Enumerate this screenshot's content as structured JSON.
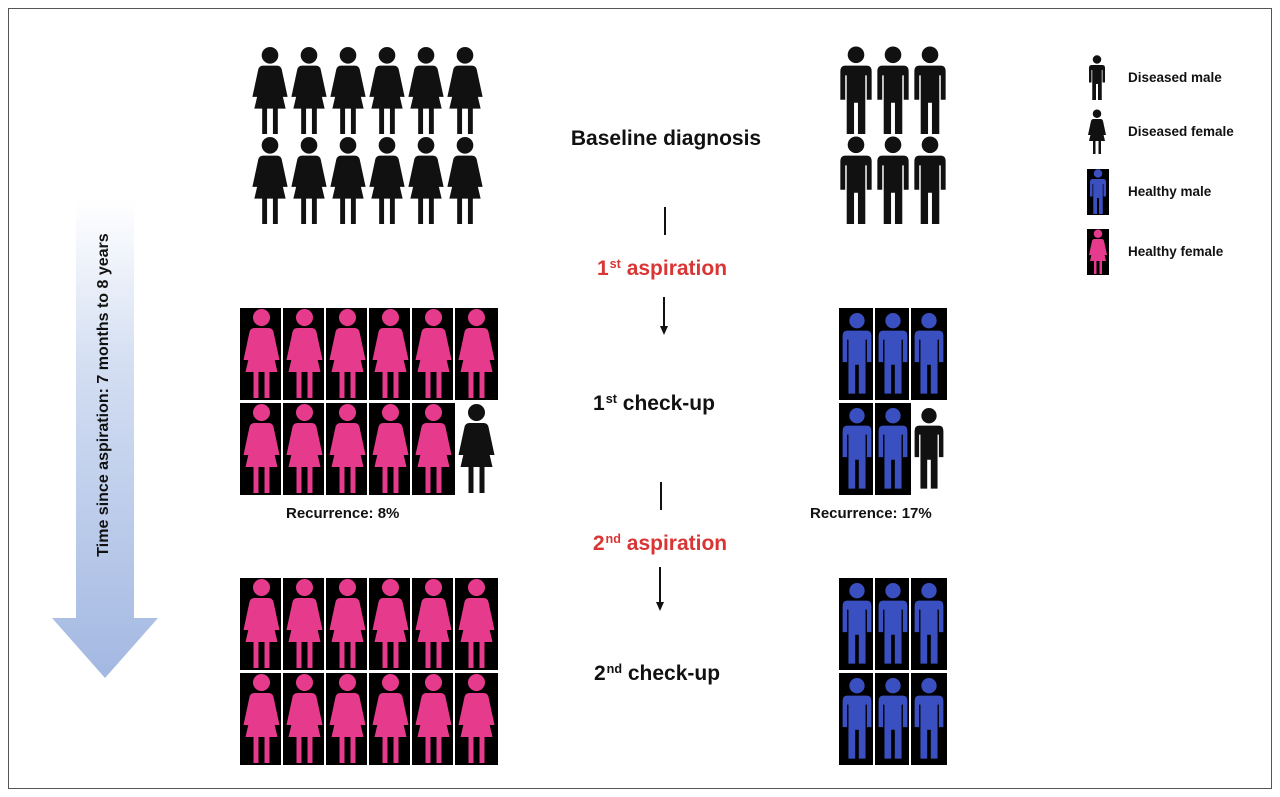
{
  "labels": {
    "baseline": "Baseline diagnosis",
    "aspiration1_num": "1",
    "aspiration1_sup": "st",
    "aspiration1_text": "aspiration",
    "checkup1_num": "1",
    "checkup1_sup": "st",
    "checkup1_text": "check-up",
    "aspiration2_num": "2",
    "aspiration2_sup": "nd",
    "aspiration2_text": "aspiration",
    "checkup2_num": "2",
    "checkup2_sup": "nd",
    "checkup2_text": "check-up",
    "recurrence_female": "Recurrence: 8%",
    "recurrence_male": "Recurrence: 17%",
    "time_axis": "Time since aspiration: 7 months to 8 years"
  },
  "legend": [
    {
      "label": "Diseased male",
      "icon": "male-icon",
      "color": "#111111"
    },
    {
      "label": "Diseased female",
      "icon": "female-icon",
      "color": "#111111"
    },
    {
      "label": "Healthy male",
      "icon": "male-icon",
      "color": "#3a4fc0"
    },
    {
      "label": "Healthy female",
      "icon": "female-icon",
      "color": "#e63a8c"
    }
  ],
  "colors": {
    "diseased": "#111111",
    "healthy_male": "#3a4fc0",
    "healthy_female": "#e63a8c",
    "aspiration_text": "#d93535",
    "time_arrow": "#a9bde3"
  },
  "cohorts": {
    "baseline": {
      "female_rows": [
        [
          "diseased",
          "diseased",
          "diseased",
          "diseased",
          "diseased",
          "diseased"
        ],
        [
          "diseased",
          "diseased",
          "diseased",
          "diseased",
          "diseased",
          "diseased"
        ]
      ],
      "male_rows": [
        [
          "diseased",
          "diseased",
          "diseased"
        ],
        [
          "diseased",
          "diseased",
          "diseased"
        ]
      ]
    },
    "checkup1": {
      "female_rows": [
        [
          "healthy",
          "healthy",
          "healthy",
          "healthy",
          "healthy",
          "healthy"
        ],
        [
          "healthy",
          "healthy",
          "healthy",
          "healthy",
          "healthy",
          "diseased"
        ]
      ],
      "male_rows": [
        [
          "healthy",
          "healthy",
          "healthy"
        ],
        [
          "healthy",
          "healthy",
          "diseased"
        ]
      ]
    },
    "checkup2": {
      "female_rows": [
        [
          "healthy",
          "healthy",
          "healthy",
          "healthy",
          "healthy",
          "healthy"
        ],
        [
          "healthy",
          "healthy",
          "healthy",
          "healthy",
          "healthy",
          "healthy"
        ]
      ],
      "male_rows": [
        [
          "healthy",
          "healthy",
          "healthy"
        ],
        [
          "healthy",
          "healthy",
          "healthy"
        ]
      ]
    }
  }
}
